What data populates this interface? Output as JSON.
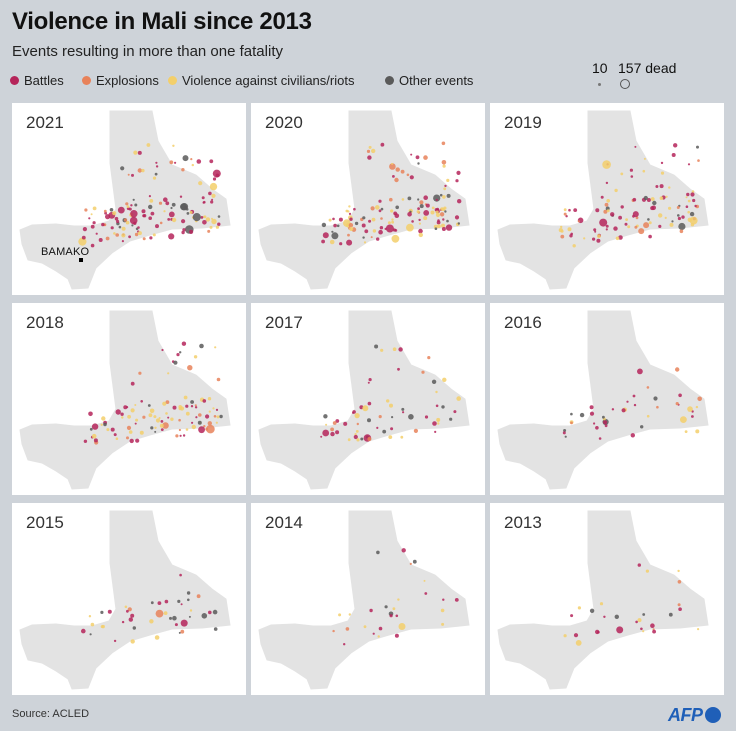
{
  "header": {
    "title": "Violence in Mali since 2013",
    "subtitle": "Events resulting in more than one fatality"
  },
  "legend": {
    "categories": [
      {
        "label": "Battles",
        "color": "#b5245a"
      },
      {
        "label": "Explosions",
        "color": "#e8825a"
      },
      {
        "label": "Violence against civilians/riots",
        "color": "#f3cf6b"
      },
      {
        "label": "Other events",
        "color": "#5a5a5a"
      }
    ],
    "size": {
      "min_label": "10",
      "max_label": "157 dead"
    }
  },
  "map_labels": {
    "capital": "BAMAKO"
  },
  "panels": [
    {
      "year": "2021",
      "density": 1.0,
      "show_capital": true
    },
    {
      "year": "2020",
      "density": 1.0,
      "show_capital": false
    },
    {
      "year": "2019",
      "density": 0.8,
      "show_capital": false
    },
    {
      "year": "2018",
      "density": 0.75,
      "show_capital": false
    },
    {
      "year": "2017",
      "density": 0.45,
      "show_capital": false
    },
    {
      "year": "2016",
      "density": 0.3,
      "show_capital": false
    },
    {
      "year": "2015",
      "density": 0.3,
      "show_capital": false
    },
    {
      "year": "2014",
      "density": 0.2,
      "show_capital": false
    },
    {
      "year": "2013",
      "density": 0.2,
      "show_capital": false
    }
  ],
  "footer": {
    "source": "Source: ACLED",
    "brand": "AFP"
  }
}
